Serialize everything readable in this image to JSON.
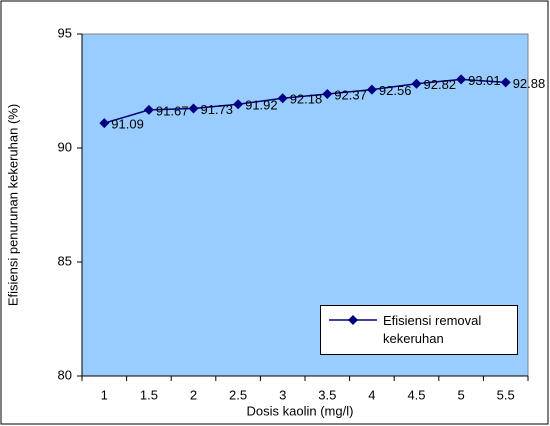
{
  "chart_data": {
    "type": "line",
    "x_label": "Dosis kaolin (mg/l)",
    "y_label": "Efisiensi penurunan kekeruhan (%)",
    "categories": [
      1,
      1.5,
      2,
      2.5,
      3,
      3.5,
      4,
      4.5,
      5,
      5.5
    ],
    "series": [
      {
        "name": "Efisiensi removal kekeruhan",
        "color": "#000080",
        "values": [
          91.09,
          91.67,
          91.73,
          91.92,
          92.18,
          92.37,
          92.56,
          92.82,
          93.01,
          92.88
        ]
      }
    ],
    "ylim": [
      80,
      95
    ],
    "yticks": [
      80,
      85,
      90,
      95
    ],
    "plot_background": "#99ccff",
    "legend": "lower right",
    "data_labels": true
  }
}
